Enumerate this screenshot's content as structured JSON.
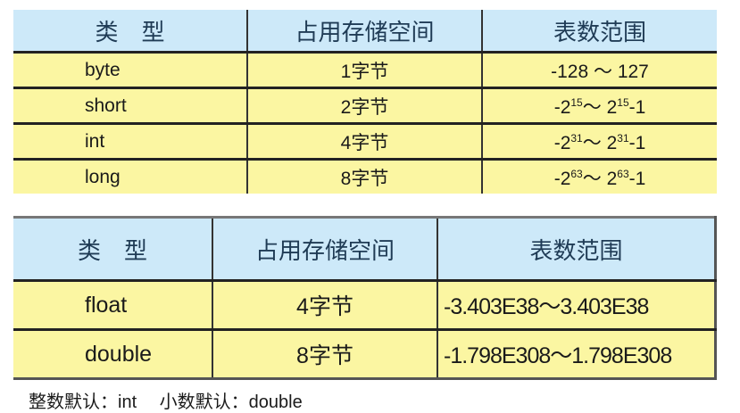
{
  "table1": {
    "headers": [
      "类　型",
      "占用存储空间",
      "表数范围"
    ],
    "rows": [
      {
        "type": "byte",
        "size": "1字节",
        "range_min": "-128",
        "range_max": "127",
        "exp": ""
      },
      {
        "type": "short",
        "size": "2字节",
        "base": "2",
        "exp": "15"
      },
      {
        "type": "int",
        "size": "4字节",
        "base": "2",
        "exp": "31"
      },
      {
        "type": "long",
        "size": "8字节",
        "base": "2",
        "exp": "63"
      }
    ],
    "tilde": "～",
    "minus": "-",
    "minus_one": "-1",
    "byte_range": "-128 ～ 127"
  },
  "table2": {
    "headers": [
      "类　型",
      "占用存储空间",
      "表数范围"
    ],
    "rows": [
      {
        "type": "float",
        "size": "4字节",
        "range": "-3.403E38～3.403E38"
      },
      {
        "type": "double",
        "size": "8字节",
        "range": "-1.798E308～1.798E308"
      }
    ]
  },
  "footer": "整数默认：int　 小数默认：double",
  "colors": {
    "header_bg": "#cde9f9",
    "row_bg": "#fbf6a2"
  }
}
